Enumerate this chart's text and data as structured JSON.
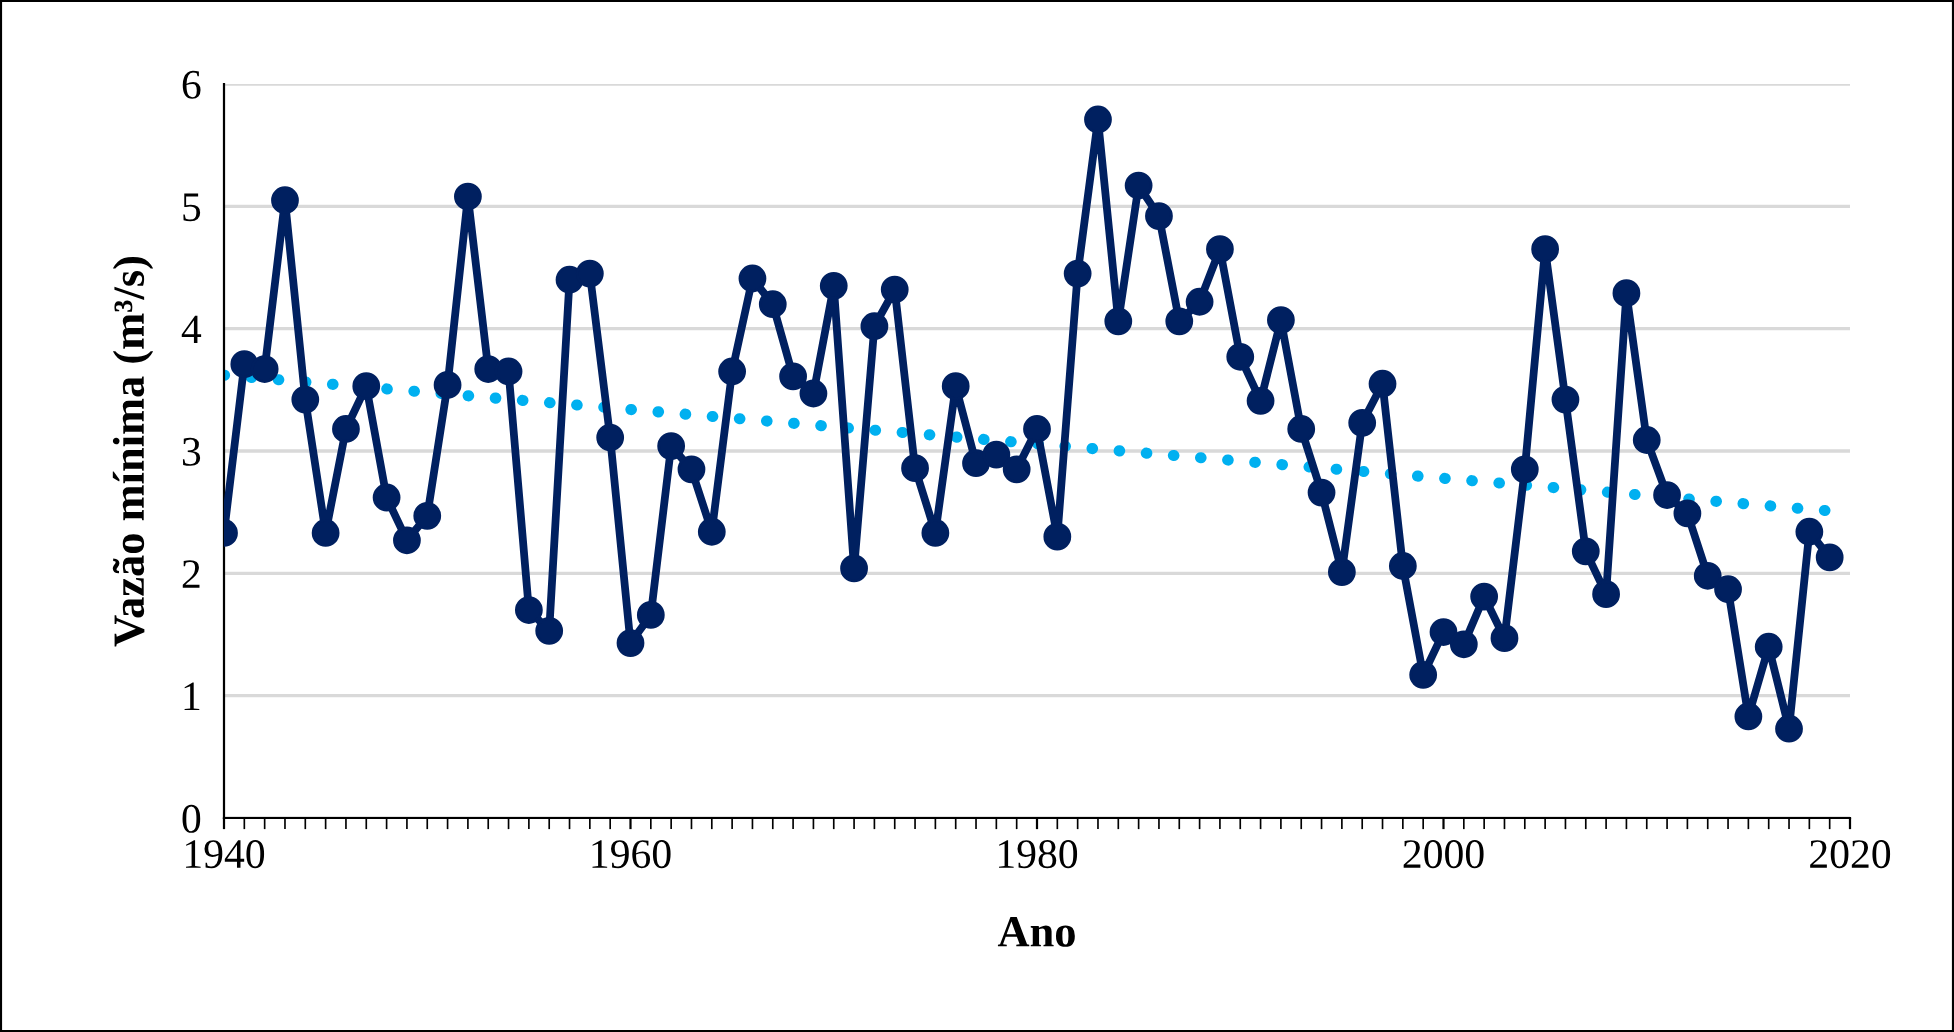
{
  "chart_data": {
    "type": "line",
    "xlabel": "Ano",
    "ylabel": "Vazão mínima (m³/s)",
    "xlim": [
      1940,
      2020
    ],
    "xticks": [
      1940,
      1960,
      1980,
      2000,
      2020
    ],
    "ylim": [
      0,
      6
    ],
    "yticks": [
      0,
      1,
      2,
      3,
      4,
      5,
      6
    ],
    "grid": "y",
    "series": [
      {
        "color": "#002060",
        "marker": "circle",
        "line_style": "solid",
        "x": [
          1940,
          1941,
          1942,
          1943,
          1944,
          1945,
          1946,
          1947,
          1948,
          1949,
          1950,
          1951,
          1952,
          1953,
          1954,
          1955,
          1956,
          1957,
          1958,
          1959,
          1960,
          1961,
          1962,
          1963,
          1964,
          1965,
          1966,
          1967,
          1968,
          1969,
          1970,
          1971,
          1972,
          1973,
          1974,
          1975,
          1976,
          1977,
          1978,
          1979,
          1980,
          1981,
          1982,
          1983,
          1984,
          1985,
          1986,
          1987,
          1988,
          1989,
          1990,
          1991,
          1992,
          1993,
          1994,
          1995,
          1996,
          1997,
          1998,
          1999,
          2000,
          2001,
          2002,
          2003,
          2004,
          2005,
          2006,
          2007,
          2008,
          2009,
          2010,
          2011,
          2012,
          2013,
          2014,
          2015,
          2016,
          2017,
          2018,
          2019
        ],
        "values": [
          2.33,
          3.71,
          3.67,
          5.05,
          3.42,
          2.33,
          3.18,
          3.53,
          2.62,
          2.27,
          2.47,
          3.54,
          5.08,
          3.67,
          3.65,
          1.7,
          1.53,
          4.4,
          4.45,
          3.11,
          1.43,
          1.66,
          3.04,
          2.85,
          2.34,
          3.65,
          4.41,
          4.2,
          3.61,
          3.47,
          4.35,
          2.04,
          4.02,
          4.32,
          2.86,
          2.33,
          3.53,
          2.9,
          2.97,
          2.85,
          3.18,
          2.3,
          4.45,
          5.71,
          4.06,
          5.17,
          4.92,
          4.06,
          4.22,
          4.65,
          3.77,
          3.41,
          4.07,
          3.18,
          2.66,
          2.01,
          3.23,
          3.55,
          2.06,
          1.17,
          1.52,
          1.42,
          1.81,
          1.47,
          2.85,
          4.65,
          3.42,
          2.18,
          1.83,
          4.29,
          3.09,
          2.64,
          2.49,
          1.98,
          1.87,
          0.83,
          1.4,
          0.73,
          2.34,
          2.13
        ]
      },
      {
        "color": "#00b0f0",
        "marker": "none",
        "line_style": "dotted",
        "x": [
          1940,
          2019
        ],
        "values": [
          3.62,
          2.51
        ]
      }
    ]
  }
}
